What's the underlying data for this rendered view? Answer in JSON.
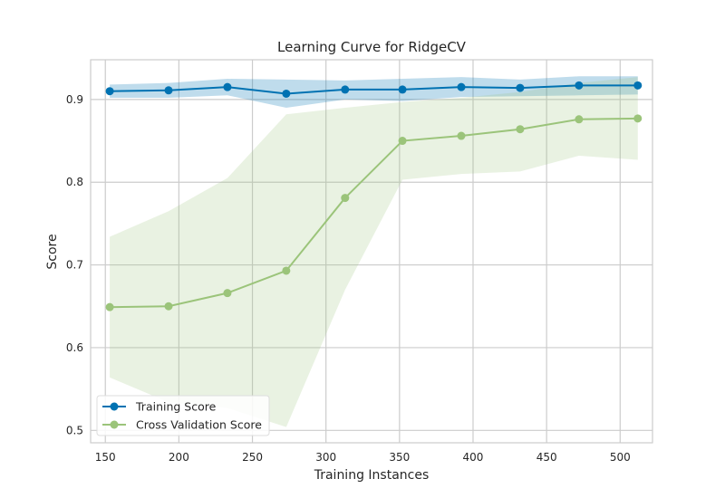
{
  "chart_data": {
    "type": "line",
    "title": "Learning Curve for RidgeCV",
    "xlabel": "Training Instances",
    "ylabel": "Score",
    "xlim": [
      140,
      522
    ],
    "ylim": [
      0.485,
      0.948
    ],
    "xticks": [
      150,
      200,
      250,
      300,
      350,
      400,
      450,
      500
    ],
    "yticks": [
      0.5,
      0.6,
      0.7,
      0.8,
      0.9
    ],
    "x": [
      153,
      193,
      233,
      273,
      313,
      352,
      392,
      432,
      472,
      512
    ],
    "grid": true,
    "legend_position": "lower-left",
    "series": [
      {
        "name": "Training Score",
        "color": "#0072b2",
        "values": [
          0.91,
          0.911,
          0.915,
          0.907,
          0.912,
          0.912,
          0.915,
          0.914,
          0.917,
          0.917
        ],
        "lower": [
          0.902,
          0.902,
          0.905,
          0.89,
          0.9,
          0.898,
          0.903,
          0.904,
          0.905,
          0.906
        ],
        "upper": [
          0.918,
          0.92,
          0.925,
          0.924,
          0.923,
          0.925,
          0.927,
          0.924,
          0.928,
          0.928
        ]
      },
      {
        "name": "Cross Validation Score",
        "color": "#9bc47a",
        "values": [
          0.649,
          0.65,
          0.666,
          0.693,
          0.781,
          0.85,
          0.856,
          0.864,
          0.876,
          0.877
        ],
        "lower": [
          0.564,
          0.534,
          0.527,
          0.504,
          0.67,
          0.803,
          0.81,
          0.813,
          0.832,
          0.827
        ],
        "upper": [
          0.734,
          0.765,
          0.805,
          0.882,
          0.89,
          0.897,
          0.902,
          0.909,
          0.92,
          0.927
        ]
      }
    ]
  }
}
